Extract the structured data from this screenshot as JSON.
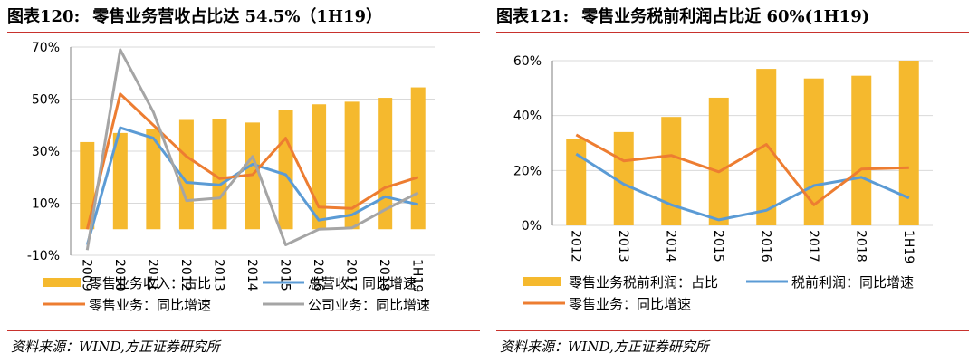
{
  "left": {
    "title_no": "图表120:",
    "title_text": "零售业务营收占比达 54.5%（1H19）",
    "source": "资料来源：WIND,方正证券研究所"
  },
  "right": {
    "title_no": "图表121:",
    "title_text": "零售业务税前利润占比近 60%(1H19)",
    "source": "资料来源：WIND,方正证券研究所"
  },
  "colors": {
    "bar": "#f5b92e",
    "blue": "#5b9bd5",
    "orange": "#ed7d31",
    "gray": "#a5a5a5",
    "rule": "#c8322d"
  },
  "chart_data": [
    {
      "type": "bar",
      "categories": [
        "2009",
        "2010",
        "2011",
        "2012",
        "2013",
        "2014",
        "2015",
        "2016",
        "2017",
        "2018",
        "1H19"
      ],
      "y_ticks": [
        "70%",
        "50%",
        "30%",
        "10%",
        "-10%"
      ],
      "ylim": [
        -10,
        70
      ],
      "series": [
        {
          "name": "零售业务收入：占比",
          "kind": "bar",
          "color": "#f5b92e",
          "values": [
            33.5,
            37.0,
            38.5,
            42.0,
            42.5,
            41.0,
            46.0,
            48.0,
            49.0,
            50.5,
            54.5
          ]
        },
        {
          "name": "总营收：同比增速",
          "kind": "line",
          "color": "#5b9bd5",
          "values": [
            -6,
            39,
            35,
            18,
            17,
            25,
            21,
            3.5,
            5.5,
            12.5,
            9.5
          ]
        },
        {
          "name": "零售业务：同比增速",
          "kind": "line",
          "color": "#ed7d31",
          "values": [
            0,
            52,
            40,
            28,
            19.5,
            21,
            35,
            8.5,
            8,
            16,
            20
          ]
        },
        {
          "name": "公司业务：同比增速",
          "kind": "line",
          "color": "#a5a5a5",
          "values": [
            -8,
            69,
            45,
            11,
            12,
            28,
            -6,
            0,
            0.5,
            7.5,
            14
          ]
        }
      ],
      "legend": [
        "零售业务收入：占比",
        "总营收：同比增速",
        "零售业务：同比增速",
        "公司业务：同比增速"
      ],
      "legend_position": "bottom",
      "grid": true
    },
    {
      "type": "bar",
      "categories": [
        "2012",
        "2013",
        "2014",
        "2015",
        "2016",
        "2017",
        "2018",
        "1H19"
      ],
      "y_ticks": [
        "60%",
        "40%",
        "20%",
        "0%"
      ],
      "ylim": [
        0,
        60
      ],
      "series": [
        {
          "name": "零售业务税前利润：占比",
          "kind": "bar",
          "color": "#f5b92e",
          "values": [
            31.5,
            34,
            39.5,
            46.5,
            57,
            53.5,
            54.5,
            60
          ]
        },
        {
          "name": "税前利润：同比增速",
          "kind": "line",
          "color": "#5b9bd5",
          "values": [
            26,
            15,
            7.5,
            2,
            5.5,
            14.5,
            17.5,
            10
          ]
        },
        {
          "name": "零售业务：同比增速",
          "kind": "line",
          "color": "#ed7d31",
          "values": [
            33,
            23.5,
            25.5,
            19.5,
            29.5,
            7.5,
            20.5,
            21
          ]
        }
      ],
      "legend": [
        "零售业务税前利润：占比",
        "税前利润：同比增速",
        "零售业务：同比增速"
      ],
      "legend_position": "bottom",
      "grid": true
    }
  ]
}
